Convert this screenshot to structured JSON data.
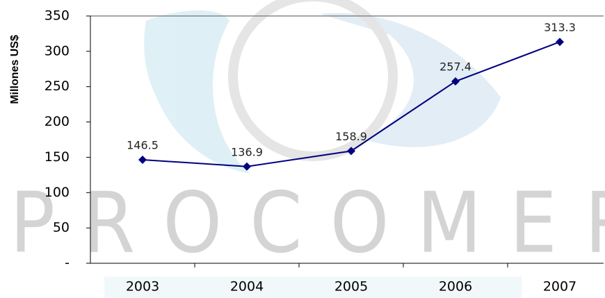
{
  "chart_data": {
    "type": "line",
    "ylabel": "Millones US$",
    "watermark": "PROCOMER",
    "categories": [
      "2003",
      "2004",
      "2005",
      "2006",
      "2007"
    ],
    "series": [
      {
        "name": "Millones US$",
        "color": "#000080",
        "values": [
          146.5,
          136.9,
          158.9,
          257.4,
          313.3
        ]
      }
    ],
    "ylim": [
      0,
      350
    ],
    "yticks": [
      {
        "value": 0,
        "label": "-"
      },
      50,
      100,
      150,
      200,
      250,
      300,
      350
    ],
    "grid": false
  }
}
